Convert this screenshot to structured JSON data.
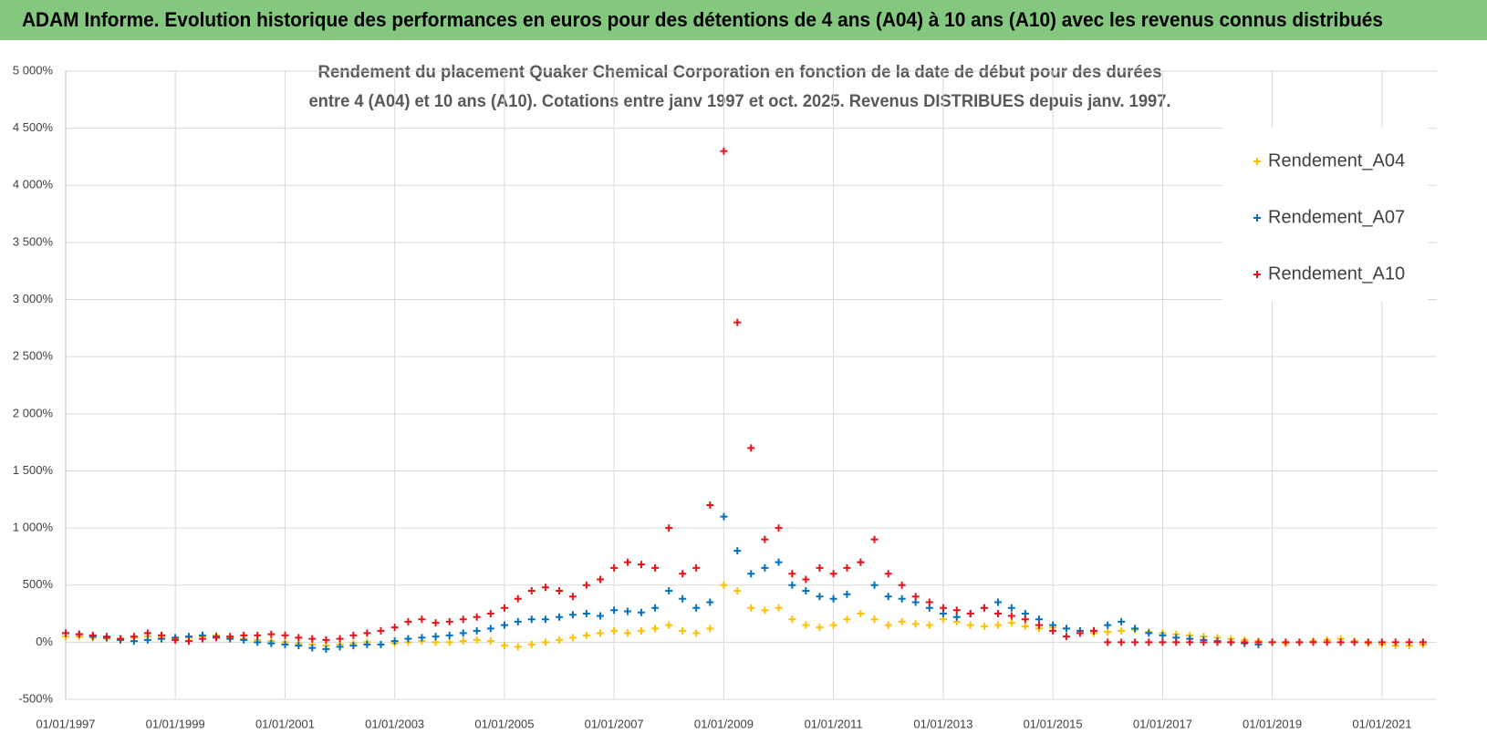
{
  "header": {
    "title": "ADAM Informe. Evolution historique des performances en euros pour des détentions de 4 ans (A04) à 10 ans (A10) avec les revenus connus distribués"
  },
  "chart_data": {
    "type": "scatter",
    "title": [
      "Rendement du placement Quaker Chemical Corporation en fonction de la date de début pour des durées",
      "entre 4 (A04) et 10 ans (A10). Cotations entre janv 1997 et oct. 2025. Revenus DISTRIBUES depuis janv. 1997."
    ],
    "x": [
      "1997-01-01",
      "1997-04-01",
      "1997-07-01",
      "1997-10-01",
      "1998-01-01",
      "1998-04-01",
      "1998-07-01",
      "1998-10-01",
      "1999-01-01",
      "1999-04-01",
      "1999-07-01",
      "1999-10-01",
      "2000-01-01",
      "2000-04-01",
      "2000-07-01",
      "2000-10-01",
      "2001-01-01",
      "2001-04-01",
      "2001-07-01",
      "2001-10-01",
      "2002-01-01",
      "2002-04-01",
      "2002-07-01",
      "2002-10-01",
      "2003-01-01",
      "2003-04-01",
      "2003-07-01",
      "2003-10-01",
      "2004-01-01",
      "2004-04-01",
      "2004-07-01",
      "2004-10-01",
      "2005-01-01",
      "2005-04-01",
      "2005-07-01",
      "2005-10-01",
      "2006-01-01",
      "2006-04-01",
      "2006-07-01",
      "2006-10-01",
      "2007-01-01",
      "2007-04-01",
      "2007-07-01",
      "2007-10-01",
      "2008-01-01",
      "2008-04-01",
      "2008-07-01",
      "2008-10-01",
      "2009-01-01",
      "2009-04-01",
      "2009-07-01",
      "2009-10-01",
      "2010-01-01",
      "2010-04-01",
      "2010-07-01",
      "2010-10-01",
      "2011-01-01",
      "2011-04-01",
      "2011-07-01",
      "2011-10-01",
      "2012-01-01",
      "2012-04-01",
      "2012-07-01",
      "2012-10-01",
      "2013-01-01",
      "2013-04-01",
      "2013-07-01",
      "2013-10-01",
      "2014-01-01",
      "2014-04-01",
      "2014-07-01",
      "2014-10-01",
      "2015-01-01",
      "2015-04-01",
      "2015-07-01",
      "2015-10-01",
      "2016-01-01",
      "2016-04-01",
      "2016-07-01",
      "2016-10-01",
      "2017-01-01",
      "2017-04-01",
      "2017-07-01",
      "2017-10-01",
      "2018-01-01",
      "2018-04-01",
      "2018-07-01",
      "2018-10-01",
      "2019-01-01",
      "2019-04-01",
      "2019-07-01",
      "2019-10-01",
      "2020-01-01",
      "2020-04-01",
      "2020-07-01",
      "2020-10-01",
      "2021-01-01",
      "2021-04-01",
      "2021-07-01",
      "2021-10-01"
    ],
    "series": [
      {
        "name": "Rendement_A04",
        "color": "#ffc000",
        "values": [
          50,
          50,
          40,
          30,
          30,
          40,
          50,
          40,
          30,
          40,
          50,
          60,
          40,
          30,
          20,
          10,
          0,
          -10,
          -20,
          -30,
          -20,
          -10,
          0,
          -20,
          -10,
          0,
          10,
          0,
          0,
          10,
          20,
          10,
          -30,
          -40,
          -20,
          0,
          20,
          40,
          60,
          80,
          100,
          80,
          100,
          120,
          150,
          100,
          80,
          120,
          500,
          450,
          300,
          280,
          300,
          200,
          150,
          130,
          150,
          200,
          250,
          200,
          150,
          180,
          160,
          150,
          200,
          180,
          150,
          140,
          150,
          170,
          140,
          120,
          130,
          120,
          100,
          80,
          90,
          100,
          110,
          90,
          80,
          70,
          60,
          50,
          40,
          30,
          20,
          10,
          0,
          -10,
          0,
          10,
          20,
          30,
          10,
          -10,
          -20,
          -30,
          -30,
          -20
        ]
      },
      {
        "name": "Rendement_A07",
        "color": "#0070c0",
        "values": [
          80,
          70,
          50,
          40,
          20,
          10,
          20,
          30,
          40,
          50,
          60,
          50,
          30,
          20,
          0,
          -10,
          -20,
          -30,
          -50,
          -60,
          -40,
          -30,
          -20,
          -20,
          10,
          30,
          40,
          50,
          60,
          80,
          100,
          120,
          150,
          180,
          200,
          200,
          220,
          240,
          250,
          230,
          280,
          270,
          260,
          300,
          450,
          380,
          300,
          350,
          1100,
          800,
          600,
          650,
          700,
          500,
          450,
          400,
          380,
          420,
          700,
          500,
          400,
          380,
          350,
          300,
          250,
          220,
          250,
          300,
          350,
          300,
          250,
          200,
          150,
          120,
          100,
          100,
          150,
          180,
          120,
          80,
          60,
          40,
          30,
          20,
          10,
          0,
          -10,
          -20,
          null,
          null,
          null,
          null,
          null,
          null,
          null,
          null,
          null,
          null,
          null,
          null
        ]
      },
      {
        "name": "Rendement_A10",
        "color": "#e8121a",
        "values": [
          80,
          70,
          60,
          50,
          30,
          50,
          80,
          60,
          20,
          10,
          30,
          40,
          50,
          60,
          60,
          70,
          60,
          40,
          30,
          20,
          30,
          60,
          80,
          100,
          130,
          180,
          200,
          170,
          180,
          200,
          220,
          250,
          300,
          380,
          450,
          480,
          450,
          400,
          500,
          550,
          650,
          700,
          680,
          650,
          1000,
          600,
          650,
          1200,
          4300,
          2800,
          1700,
          900,
          1000,
          600,
          550,
          650,
          600,
          650,
          700,
          900,
          600,
          500,
          400,
          350,
          300,
          280,
          250,
          300,
          250,
          230,
          200,
          150,
          100,
          50,
          80,
          100,
          0,
          0,
          0,
          0,
          0,
          0,
          0,
          0,
          0,
          0,
          0,
          0,
          0,
          0,
          0,
          0,
          0,
          0,
          0,
          0,
          0,
          0,
          0,
          0
        ]
      }
    ],
    "xlim": [
      "1997-01-01",
      "2022-01-01"
    ],
    "xticks": [
      {
        "value": "1997-01-01",
        "label": "01/01/1997"
      },
      {
        "value": "1999-01-01",
        "label": "01/01/1999"
      },
      {
        "value": "2001-01-01",
        "label": "01/01/2001"
      },
      {
        "value": "2003-01-01",
        "label": "01/01/2003"
      },
      {
        "value": "2005-01-01",
        "label": "01/01/2005"
      },
      {
        "value": "2007-01-01",
        "label": "01/01/2007"
      },
      {
        "value": "2009-01-01",
        "label": "01/01/2009"
      },
      {
        "value": "2011-01-01",
        "label": "01/01/2011"
      },
      {
        "value": "2013-01-01",
        "label": "01/01/2013"
      },
      {
        "value": "2015-01-01",
        "label": "01/01/2015"
      },
      {
        "value": "2017-01-01",
        "label": "01/01/2017"
      },
      {
        "value": "2019-01-01",
        "label": "01/01/2019"
      },
      {
        "value": "2021-01-01",
        "label": "01/01/2021"
      }
    ],
    "ylim": [
      -500,
      5000
    ],
    "yticks": [
      {
        "value": -500,
        "label": "-500%"
      },
      {
        "value": 0,
        "label": "0%"
      },
      {
        "value": 500,
        "label": "500%"
      },
      {
        "value": 1000,
        "label": "1 000%"
      },
      {
        "value": 1500,
        "label": "1 500%"
      },
      {
        "value": 2000,
        "label": "2 000%"
      },
      {
        "value": 2500,
        "label": "2 500%"
      },
      {
        "value": 3000,
        "label": "3 000%"
      },
      {
        "value": 3500,
        "label": "3 500%"
      },
      {
        "value": 4000,
        "label": "4 000%"
      },
      {
        "value": 4500,
        "label": "4 500%"
      },
      {
        "value": 5000,
        "label": "5 000%"
      }
    ],
    "grid": true,
    "legend": "top-right"
  }
}
